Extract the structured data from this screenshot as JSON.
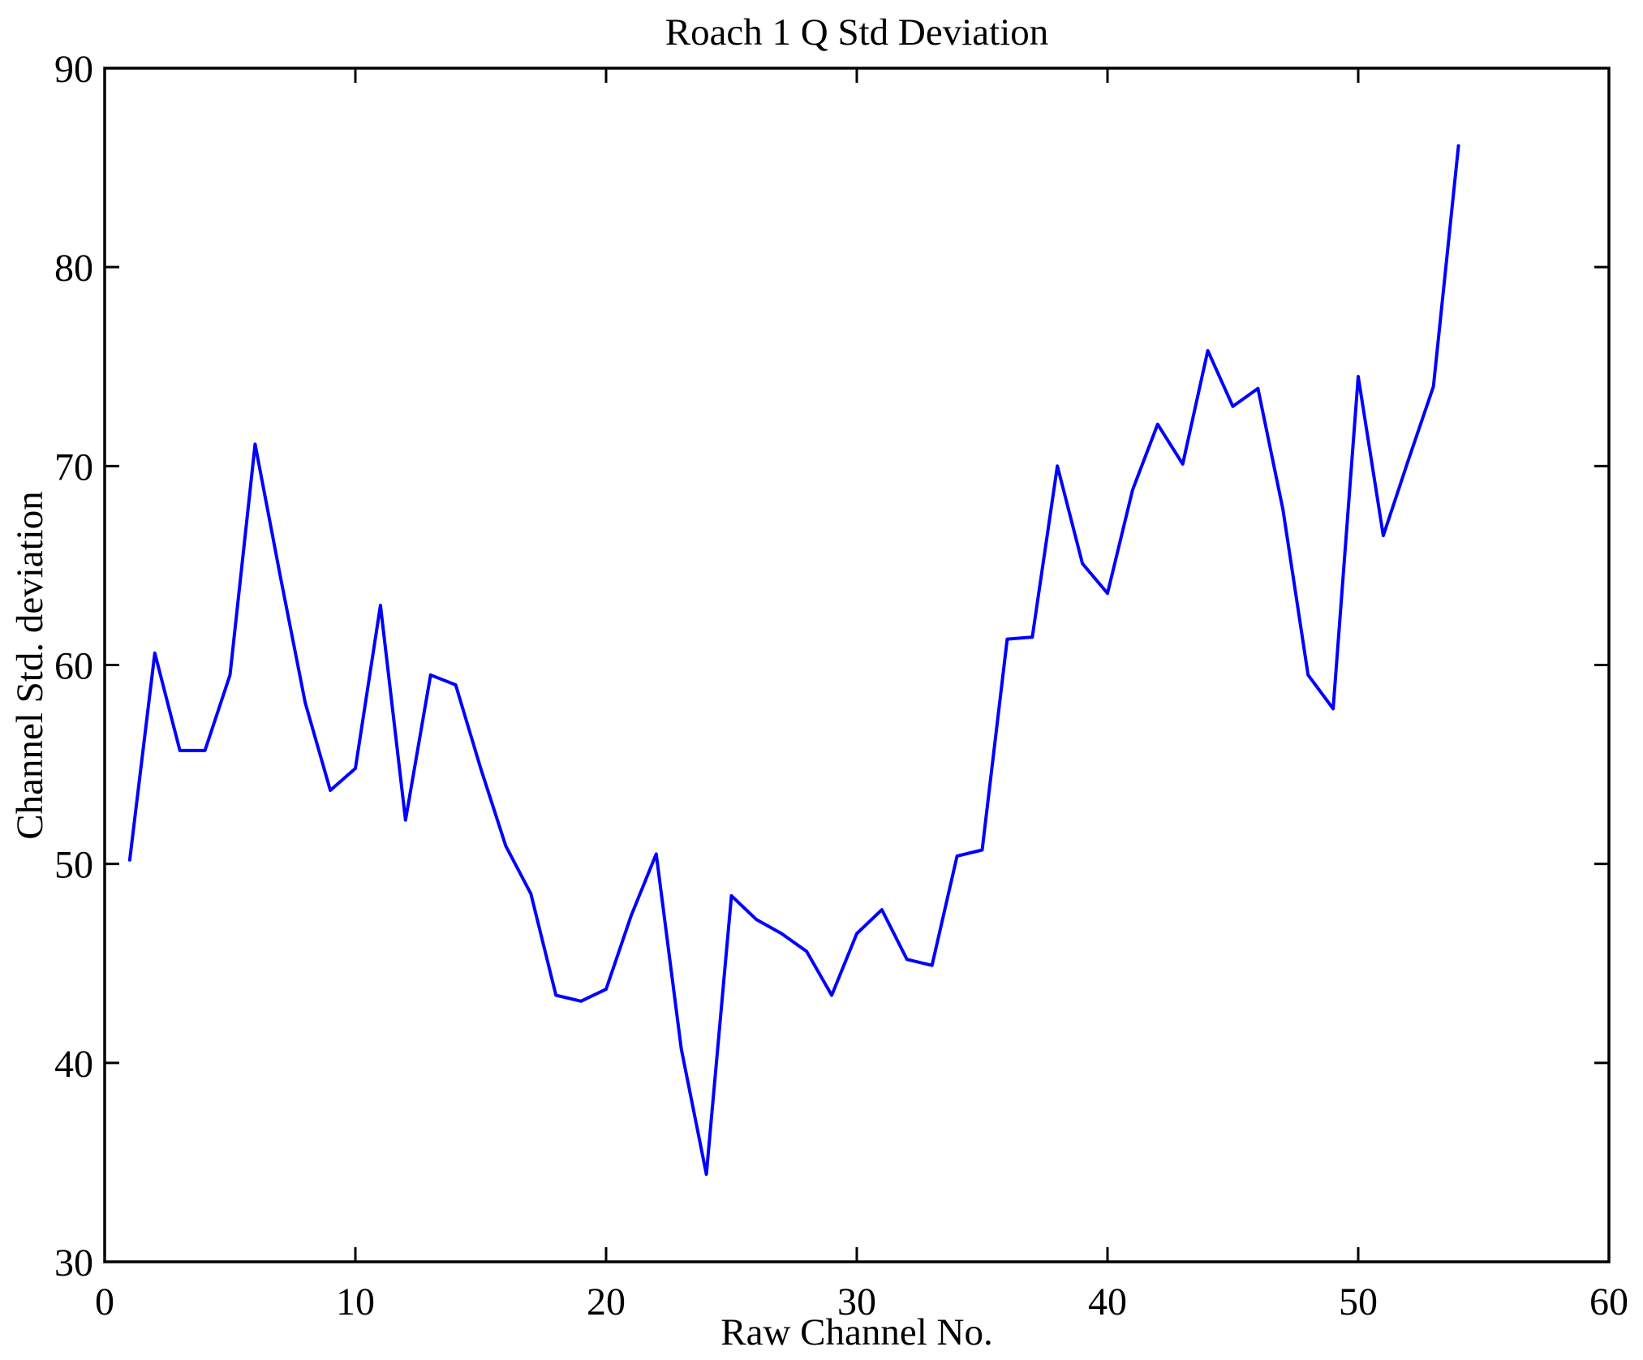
{
  "figure": {
    "background": "#ffffff",
    "axes_color": "#000000"
  },
  "chart_data": {
    "type": "line",
    "title": "Roach 1 Q Std Deviation",
    "xlabel": "Raw Channel No.",
    "ylabel": "Channel Std. deviation",
    "xlim": [
      0,
      60
    ],
    "ylim": [
      30,
      90
    ],
    "xticks": [
      0,
      10,
      20,
      30,
      40,
      50,
      60
    ],
    "yticks": [
      30,
      40,
      50,
      60,
      70,
      80,
      90
    ],
    "grid": false,
    "legend": "none",
    "line_color": "#0000FF",
    "line_width": 4,
    "x": [
      1,
      2,
      3,
      4,
      5,
      6,
      7,
      8,
      9,
      10,
      11,
      12,
      13,
      14,
      15,
      16,
      17,
      18,
      19,
      20,
      21,
      22,
      23,
      24,
      25,
      26,
      27,
      28,
      29,
      30,
      31,
      32,
      33,
      34,
      35,
      36,
      37,
      38,
      39,
      40,
      41,
      42,
      43,
      44,
      45,
      46,
      47,
      48,
      49,
      50,
      51,
      52,
      53,
      54
    ],
    "y": [
      50.2,
      60.6,
      55.7,
      55.7,
      59.5,
      71.1,
      64.5,
      58.1,
      53.7,
      54.8,
      63.0,
      52.2,
      59.5,
      59.0,
      54.8,
      50.9,
      48.5,
      43.4,
      43.1,
      43.7,
      47.4,
      50.5,
      40.7,
      34.4,
      48.4,
      47.2,
      46.5,
      45.6,
      43.4,
      46.5,
      47.7,
      45.2,
      44.9,
      50.4,
      50.7,
      61.3,
      61.4,
      70.0,
      65.1,
      63.6,
      68.8,
      72.1,
      70.1,
      75.8,
      73.0,
      73.9,
      67.8,
      59.5,
      57.8,
      74.5,
      66.5,
      70.3,
      74.0,
      86.1
    ]
  },
  "layout_note": ""
}
